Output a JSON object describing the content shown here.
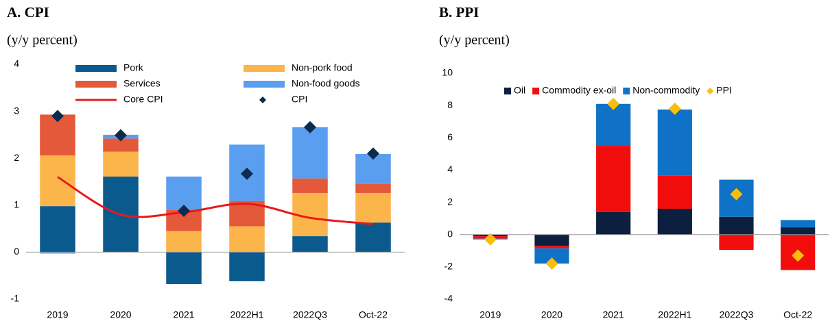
{
  "chart_data": [
    {
      "type": "bar",
      "title": "A. CPI",
      "subtitle": "(y/y percent)",
      "categories": [
        "2019",
        "2020",
        "2021",
        "2022H1",
        "2022Q3",
        "Oct-22"
      ],
      "ylim": [
        -1,
        4
      ],
      "yticks": [
        -1,
        0,
        1,
        2,
        3,
        4
      ],
      "series": [
        {
          "name": "Pork",
          "color": "#0b5a8e",
          "values": [
            0.98,
            1.61,
            -0.68,
            -0.62,
            0.34,
            0.63
          ]
        },
        {
          "name": "Non-pork food",
          "color": "#fbb54a",
          "values": [
            1.08,
            0.53,
            0.45,
            0.55,
            0.92,
            0.63
          ]
        },
        {
          "name": "Services",
          "color": "#e4593a",
          "values": [
            0.87,
            0.28,
            0.45,
            0.54,
            0.31,
            0.19
          ]
        },
        {
          "name": "Non-food goods",
          "color": "#5a9ef0",
          "values": [
            -0.03,
            0.08,
            0.71,
            1.2,
            1.09,
            0.64
          ]
        },
        {
          "name": "Core CPI",
          "type": "line",
          "color": "#e81919",
          "values": [
            1.6,
            0.8,
            0.85,
            1.03,
            0.73,
            0.6
          ]
        },
        {
          "name": "CPI",
          "type": "scatter",
          "color": "#0d2a4f",
          "values": [
            2.9,
            2.49,
            0.88,
            1.67,
            2.66,
            2.1
          ]
        }
      ]
    },
    {
      "type": "bar",
      "title": "B. PPI",
      "subtitle": "(y/y percent)",
      "categories": [
        "2019",
        "2020",
        "2021",
        "2022H1",
        "2022Q3",
        "Oct-22"
      ],
      "ylim": [
        -4,
        10
      ],
      "yticks": [
        -4,
        -2,
        0,
        2,
        4,
        6,
        8,
        10
      ],
      "series": [
        {
          "name": "Oil",
          "color": "#0c1f3f",
          "values": [
            -0.1,
            -0.7,
            1.4,
            1.6,
            1.1,
            0.45
          ]
        },
        {
          "name": "Commodity ex-oil",
          "color": "#f20d0d",
          "values": [
            -0.15,
            -0.15,
            4.1,
            2.05,
            -0.95,
            -2.2
          ]
        },
        {
          "name": "Non-commodity",
          "color": "#0f72c6",
          "values": [
            -0.05,
            -0.95,
            2.6,
            4.1,
            2.3,
            0.45
          ]
        },
        {
          "name": "PPI",
          "type": "scatter",
          "color": "#f7bf0c",
          "values": [
            -0.3,
            -1.8,
            8.1,
            7.8,
            2.5,
            -1.3
          ]
        }
      ]
    }
  ]
}
